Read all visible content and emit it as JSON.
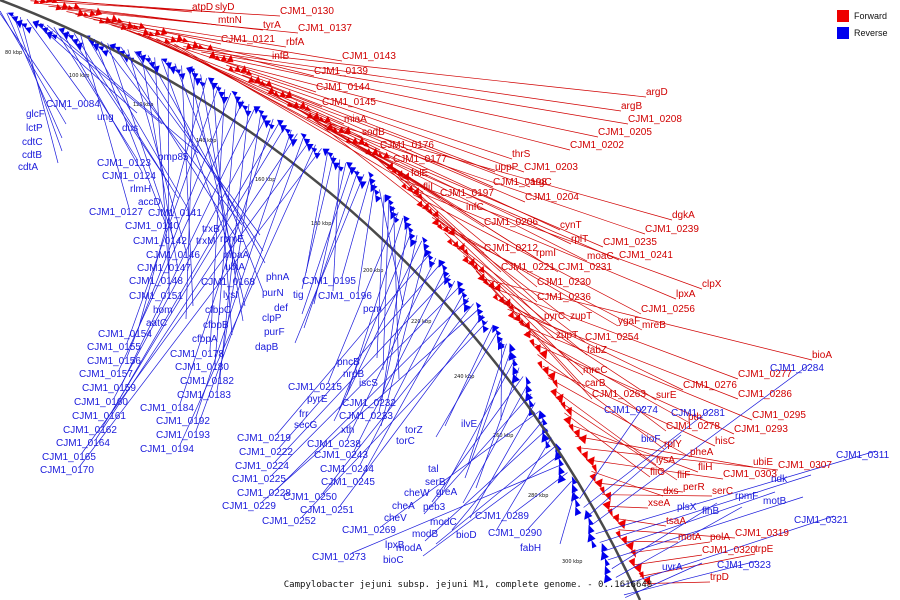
{
  "caption": "Campylobacter jejuni subsp. jejuni M1, complete genome. - 0..1616648",
  "legend": [
    {
      "label": "Forward",
      "color": "#ee0000"
    },
    {
      "label": "Reverse",
      "color": "#0000ee"
    }
  ],
  "colors": {
    "forward": "#ee0000",
    "reverse": "#0000ee",
    "forward_label": "#d00000",
    "reverse_label": "#1a1adb",
    "backbone": "#4a4a4a"
  },
  "ticks": [
    "80 kbp",
    "100 kbp",
    "120 kbp",
    "140 kbp",
    "160 kbp",
    "180 kbp",
    "200 kbp",
    "220 kbp",
    "240 kbp",
    "260 kbp",
    "280 kbp",
    "300 kbp"
  ],
  "forward_labels": [
    "atpD",
    "slyD",
    "CJM1_0130",
    "mtnN",
    "tyrA",
    "CJM1_0137",
    "CJM1_0121",
    "rbfA",
    "infB",
    "CJM1_0143",
    "CJM1_0139",
    "CJM1_0144",
    "CJM1_0145",
    "miaA",
    "sodB",
    "CJM1_0176",
    "CJM1_0177",
    "folE",
    "fliI",
    "argD",
    "argB",
    "CJM1_0208",
    "CJM1_0205",
    "CJM1_0202",
    "thrS",
    "CJM1_0203",
    "uppP",
    "CJM1_0198",
    "argC",
    "CJM1_0197",
    "infC",
    "CJM1_0204",
    "CJM1_0206",
    "cynT",
    "CJM1_0212",
    "dgkA",
    "CJM1_0239",
    "rplT",
    "CJM1_0235",
    "rpmI",
    "moaC",
    "CJM1_0241",
    "CJM1_0221",
    "CJM1_0231",
    "CJM1_0230",
    "CJM1_0236",
    "clpX",
    "lpxA",
    "CJM1_0256",
    "pyrC",
    "zupT",
    "ygaF",
    "mreB",
    "zupT",
    "CJM1_0254",
    "fabZ",
    "mreC",
    "carB",
    "CJM1_0263",
    "bioA",
    "CJM1_0277",
    "surE",
    "CJM1_0276",
    "CJM1_0286",
    "CJM1_0278",
    "CJM1_0295",
    "pth",
    "CJM1_0293",
    "rplY",
    "hisC",
    "pheA",
    "lysA",
    "fliF",
    "fliG",
    "fliH",
    "ubiE",
    "CJM1_0307",
    "CJM1_0303",
    "dxs",
    "perR",
    "serC",
    "xseA",
    "tsaA",
    "CJM1_0319",
    "motA",
    "polA",
    "CJM1_0320",
    "trpE",
    "trpD"
  ],
  "reverse_labels": [
    "glcF",
    "lctP",
    "cdtC",
    "cdtB",
    "cdtA",
    "CJM1_0084",
    "ung",
    "dus",
    "omp85",
    "CJM1_0123",
    "CJM1_0124",
    "rlmH",
    "accD",
    "CJM1_0127",
    "CJM1_0141",
    "CJM1_0140",
    "trxB",
    "CJM1_0142",
    "trxM",
    "rpmE",
    "CJM1_0146",
    "moaA",
    "CJM1_0147",
    "ubiA",
    "CJM1_0148",
    "CJM1_0168",
    "CJM1_0151",
    "lysI",
    "hom",
    "cfbpC",
    "aatC",
    "cfbpB",
    "CJM1_0154",
    "cfbpA",
    "CJM1_0155",
    "CJM1_0178",
    "CJM1_0156",
    "CJM1_0180",
    "CJM1_0157",
    "CJM1_0182",
    "CJM1_0159",
    "CJM1_0183",
    "CJM1_0160",
    "CJM1_0184",
    "CJM1_0161",
    "CJM1_0162",
    "CJM1_0192",
    "CJM1_0164",
    "CJM1_0193",
    "CJM1_0165",
    "CJM1_0194",
    "CJM1_0170",
    "phnA",
    "purN",
    "tig",
    "def",
    "clpP",
    "purF",
    "dapB",
    "CJM1_0195",
    "CJM1_0196",
    "pcm",
    "pncB",
    "nrdB",
    "iscS",
    "CJM1_0215",
    "pyrE",
    "CJM1_0232",
    "frr",
    "CJM1_0233",
    "secG",
    "xth",
    "CJM1_0219",
    "CJM1_0238",
    "CJM1_0222",
    "CJM1_0243",
    "CJM1_0224",
    "CJM1_0244",
    "CJM1_0225",
    "CJM1_0245",
    "CJM1_0228",
    "CJM1_0250",
    "CJM1_0229",
    "CJM1_0251",
    "CJM1_0252",
    "torZ",
    "torC",
    "ilvE",
    "tal",
    "serB",
    "cheW",
    "greA",
    "cheA",
    "peb3",
    "cheV",
    "modC",
    "CJM1_0269",
    "modB",
    "lpxB",
    "bioD",
    "modA",
    "bioC",
    "CJM1_0273",
    "CJM1_0289",
    "CJM1_0290",
    "fabH",
    "CJM1_0274",
    "CJM1_0281",
    "bioF",
    "CJM1_0284",
    "CJM1_0311",
    "ndk",
    "rpmF",
    "motB",
    "plsX",
    "flhB",
    "CJM1_0321",
    "CJM1_0323",
    "uvrA"
  ]
}
